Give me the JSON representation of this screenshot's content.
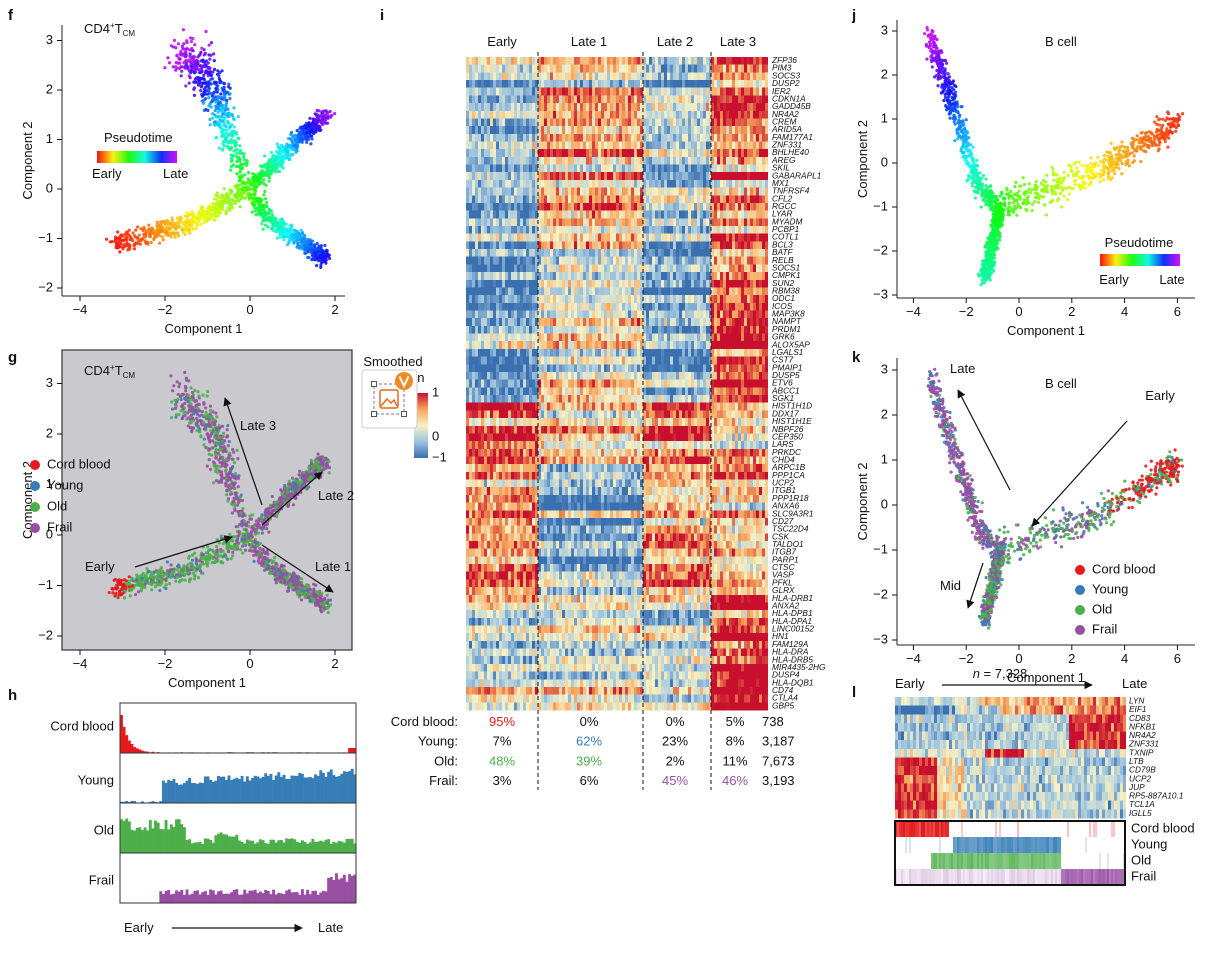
{
  "f": {
    "letter": "f",
    "title": {
      "base": "CD4",
      "sup": "+",
      "cell": "T",
      "sub": "CM"
    },
    "x_label": "Component 1",
    "y_label": "Component 2",
    "x_ticks": [
      "−4",
      "−2",
      "0",
      "2"
    ],
    "y_ticks": [
      "−2",
      "−1",
      "0",
      "1",
      "2",
      "3"
    ],
    "legend": {
      "title": "Pseudotime",
      "start": "Early",
      "end": "Late"
    }
  },
  "g": {
    "letter": "g",
    "title": {
      "base": "CD4",
      "sup": "+",
      "cell": "T",
      "sub": "CM"
    },
    "x_label": "Component 1",
    "y_label": "Component 2",
    "x_ticks": [
      "−4",
      "−2",
      "0",
      "2"
    ],
    "y_ticks": [
      "−2",
      "−1",
      "0",
      "1",
      "2",
      "3"
    ],
    "groups": [
      "Cord blood",
      "Young",
      "Old",
      "Frail"
    ],
    "arrows": {
      "early": "Early",
      "late1": "Late 1",
      "late2": "Late 2",
      "late3": "Late 3"
    }
  },
  "h": {
    "letter": "h",
    "rows": [
      "Cord blood",
      "Young",
      "Old",
      "Frail"
    ],
    "axis": {
      "start": "Early",
      "end": "Late"
    }
  },
  "i": {
    "letter": "i",
    "clusters": [
      "Early",
      "Late 1",
      "Late 2",
      "Late 3"
    ],
    "genes": [
      "ZFP36",
      "PIM3",
      "SOCS3",
      "DUSP2",
      "IER2",
      "CDKN1A",
      "GADD45B",
      "NR4A2",
      "CREM",
      "ARID5A",
      "FAM177A1",
      "ZNF331",
      "BHLHE40",
      "AREG",
      "SKIL",
      "GABARAPL1",
      "MX1",
      "TNFRSF4",
      "CFL2",
      "RGCC",
      "LYAR",
      "MYADM",
      "PCBP1",
      "COTL1",
      "BCL3",
      "BATF",
      "RELB",
      "SOCS1",
      "CMPK1",
      "SUN2",
      "RBM38",
      "ODC1",
      "ICOS",
      "MAP3K8",
      "NAMPT",
      "PRDM1",
      "GRK6",
      "ALOX5AP",
      "LGALS1",
      "CST7",
      "PMAIP1",
      "DUSP5",
      "ETV6",
      "ABCC1",
      "SGK1",
      "HIST1H1D",
      "DDX17",
      "HIST1H1E",
      "NBPF26",
      "CEP350",
      "LARS",
      "PRKDC",
      "CHD4",
      "ARPC1B",
      "PPP1CA",
      "UCP2",
      "ITGB1",
      "PPP1R18",
      "ANXA6",
      "SLC9A3R1",
      "CD27",
      "TSC22D4",
      "CSK",
      "TALDO1",
      "ITGB7",
      "PARP1",
      "CTSC",
      "VASP",
      "PFKL",
      "GLRX",
      "HLA-DRB1",
      "ANXA2",
      "HLA-DPB1",
      "HLA-DPA1",
      "LINC00152",
      "HN1",
      "FAM129A",
      "HLA-DRA",
      "HLA-DRB5",
      "MIR4435-2HG",
      "DUSP4",
      "HLA-DQB1",
      "CD74",
      "CTLA4",
      "GBP5"
    ],
    "colorbar": {
      "title": [
        "Smoothed",
        "expression"
      ],
      "ticks": [
        "1",
        "0",
        "−1"
      ]
    },
    "table": {
      "rows": [
        {
          "label": "Cord blood:",
          "cells": [
            "95%",
            "0%",
            "0%",
            "5%"
          ],
          "total": "738"
        },
        {
          "label": "Young:",
          "cells": [
            "7%",
            "62%",
            "23%",
            "8%"
          ],
          "total": "3,187"
        },
        {
          "label": "Old:",
          "cells": [
            "48%",
            "39%",
            "2%",
            "11%"
          ],
          "total": "7,673"
        },
        {
          "label": "Frail:",
          "cells": [
            "3%",
            "6%",
            "45%",
            "46%"
          ],
          "total": "3,193"
        }
      ]
    }
  },
  "j": {
    "letter": "j",
    "title": "B cell",
    "x_label": "Component 1",
    "y_label": "Component 2",
    "x_ticks": [
      "−4",
      "−2",
      "0",
      "2",
      "4",
      "6"
    ],
    "y_ticks": [
      "−3",
      "−2",
      "−1",
      "0",
      "1",
      "2",
      "3"
    ],
    "legend": {
      "title": "Pseudotime",
      "start": "Early",
      "end": "Late"
    }
  },
  "k": {
    "letter": "k",
    "title": "B cell",
    "x_label": "Component 1",
    "y_label": "Component 2",
    "x_ticks": [
      "−4",
      "−2",
      "0",
      "2",
      "4",
      "6"
    ],
    "y_ticks": [
      "−3",
      "−2",
      "−1",
      "0",
      "1",
      "2",
      "3"
    ],
    "groups": [
      "Cord blood",
      "Young",
      "Old",
      "Frail"
    ],
    "arrows": {
      "late": "Late",
      "early": "Early",
      "mid": "Mid"
    }
  },
  "l": {
    "letter": "l",
    "start": "Early",
    "n": {
      "symbol": "n",
      "rest": " = 7,328"
    },
    "end": "Late",
    "genes": [
      "LYN",
      "EIF1",
      "CD83",
      "NFKB1",
      "NR4A2",
      "ZNF331",
      "TXNIP",
      "LTB",
      "CD79B",
      "UCP2",
      "JUP",
      "RP5-887A10.1",
      "TCL1A",
      "IGLL5"
    ],
    "groups": [
      "Cord blood",
      "Young",
      "Old",
      "Frail"
    ]
  }
}
